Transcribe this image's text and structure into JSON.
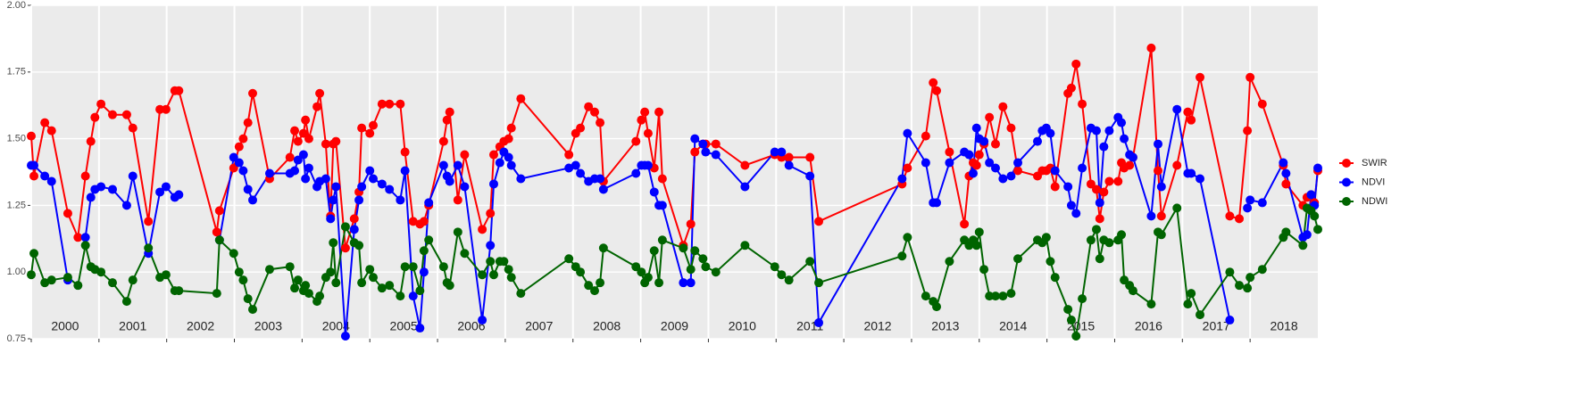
{
  "chart_data": {
    "type": "line",
    "legend": "right",
    "grid": true,
    "xlim": [
      2000,
      2019
    ],
    "xticks": [
      2000,
      2001,
      2002,
      2003,
      2004,
      2005,
      2006,
      2007,
      2008,
      2009,
      2010,
      2011,
      2012,
      2013,
      2014,
      2015,
      2016,
      2017,
      2018
    ],
    "ylim": [
      0.75,
      2
    ],
    "yticks": [
      0.75,
      {
        "value": 1,
        "label": "1.00"
      },
      1.25,
      {
        "value": 1.5,
        "label": "1.50"
      },
      1.75,
      {
        "value": 2,
        "label": "2.00"
      }
    ],
    "x": [
      2000.0,
      2000.04,
      2000.2,
      2000.3,
      2000.54,
      2000.69,
      2000.8,
      2000.88,
      2000.94,
      2001.03,
      2001.2,
      2001.41,
      2001.5,
      2001.73,
      2001.9,
      2001.99,
      2002.12,
      2002.18,
      2002.74,
      2002.78,
      2002.99,
      2003.07,
      2003.13,
      2003.2,
      2003.27,
      2003.52,
      2003.82,
      2003.89,
      2003.94,
      2004.02,
      2004.05,
      2004.1,
      2004.22,
      2004.26,
      2004.35,
      2004.42,
      2004.46,
      2004.5,
      2004.64,
      2004.77,
      2004.84,
      2004.88,
      2005.0,
      2005.05,
      2005.18,
      2005.29,
      2005.45,
      2005.52,
      2005.64,
      2005.74,
      2005.8,
      2005.87,
      2006.09,
      2006.14,
      2006.18,
      2006.3,
      2006.4,
      2006.66,
      2006.78,
      2006.83,
      2006.92,
      2006.98,
      2007.05,
      2007.09,
      2007.23,
      2007.94,
      2008.04,
      2008.11,
      2008.23,
      2008.32,
      2008.4,
      2008.45,
      2008.93,
      2009.01,
      2009.06,
      2009.11,
      2009.2,
      2009.27,
      2009.32,
      2009.63,
      2009.74,
      2009.8,
      2009.92,
      2009.96,
      2010.11,
      2010.54,
      2010.98,
      2011.08,
      2011.19,
      2011.5,
      2011.63,
      2012.86,
      2012.94,
      2013.21,
      2013.32,
      2013.37,
      2013.56,
      2013.78,
      2013.85,
      2013.91,
      2013.96,
      2014.0,
      2014.07,
      2014.15,
      2014.24,
      2014.35,
      2014.47,
      2014.57,
      2014.86,
      2014.93,
      2014.99,
      2015.05,
      2015.12,
      2015.31,
      2015.36,
      2015.43,
      2015.52,
      2015.65,
      2015.73,
      2015.78,
      2015.84,
      2015.92,
      2016.05,
      2016.1,
      2016.14,
      2016.22,
      2016.27,
      2016.54,
      2016.64,
      2016.69,
      2016.92,
      2017.08,
      2017.13,
      2017.26,
      2017.7,
      2017.84,
      2017.96,
      2018.0,
      2018.18,
      2018.49,
      2018.53,
      2018.78,
      2018.84,
      2018.9,
      2018.95,
      2019.0
    ],
    "series": [
      {
        "name": "SWIR",
        "color": "#ff0000",
        "values": [
          1.51,
          1.36,
          1.56,
          1.53,
          1.22,
          1.13,
          1.36,
          1.49,
          1.58,
          1.63,
          1.59,
          1.59,
          1.54,
          1.19,
          1.61,
          1.61,
          1.68,
          1.68,
          1.15,
          1.23,
          1.39,
          1.47,
          1.5,
          1.56,
          1.67,
          1.35,
          1.43,
          1.53,
          1.49,
          1.52,
          1.57,
          1.5,
          1.62,
          1.67,
          1.48,
          1.21,
          1.48,
          1.49,
          1.09,
          1.2,
          1.3,
          1.54,
          1.52,
          1.55,
          1.63,
          1.63,
          1.63,
          1.45,
          1.19,
          1.18,
          1.19,
          1.25,
          1.49,
          1.57,
          1.6,
          1.27,
          1.44,
          1.16,
          1.22,
          1.44,
          1.47,
          1.49,
          1.5,
          1.54,
          1.65,
          1.44,
          1.52,
          1.54,
          1.62,
          1.6,
          1.56,
          1.34,
          1.49,
          1.57,
          1.6,
          1.52,
          1.39,
          1.6,
          1.35,
          1.1,
          1.18,
          1.45,
          1.48,
          1.48,
          1.48,
          1.4,
          1.44,
          1.43,
          1.43,
          1.43,
          1.19,
          1.33,
          1.39,
          1.51,
          1.71,
          1.68,
          1.45,
          1.18,
          1.36,
          1.41,
          1.4,
          1.44,
          1.48,
          1.58,
          1.48,
          1.62,
          1.54,
          1.38,
          1.36,
          1.38,
          1.38,
          1.39,
          1.32,
          1.67,
          1.69,
          1.78,
          1.63,
          1.33,
          1.31,
          1.2,
          1.3,
          1.34,
          1.34,
          1.41,
          1.39,
          1.4,
          1.43,
          1.84,
          1.38,
          1.21,
          1.4,
          1.6,
          1.57,
          1.73,
          1.21,
          1.2,
          1.53,
          1.73,
          1.63,
          1.4,
          1.33,
          1.25,
          1.28,
          1.29,
          1.26,
          1.38
        ]
      },
      {
        "name": "NDVI",
        "color": "#0000ff",
        "values": [
          1.4,
          1.4,
          1.36,
          1.34,
          0.97,
          null,
          1.13,
          1.28,
          1.31,
          1.32,
          1.31,
          1.25,
          1.36,
          1.07,
          1.3,
          1.32,
          1.28,
          1.29,
          null,
          1.12,
          1.43,
          1.41,
          1.38,
          1.31,
          1.27,
          1.37,
          1.37,
          1.38,
          1.42,
          1.44,
          1.35,
          1.39,
          1.32,
          1.34,
          1.35,
          1.2,
          1.27,
          1.32,
          0.76,
          1.16,
          1.27,
          1.32,
          1.38,
          1.35,
          1.33,
          1.31,
          1.27,
          1.38,
          0.91,
          0.79,
          1.0,
          1.26,
          1.4,
          1.36,
          1.34,
          1.4,
          1.32,
          0.82,
          1.1,
          1.33,
          1.41,
          1.45,
          1.43,
          1.4,
          1.35,
          1.39,
          1.4,
          1.37,
          1.34,
          1.35,
          1.35,
          1.31,
          1.37,
          1.4,
          1.4,
          1.4,
          1.3,
          1.25,
          1.25,
          0.96,
          0.96,
          1.5,
          1.48,
          1.45,
          1.44,
          1.32,
          1.45,
          1.45,
          1.4,
          1.36,
          0.81,
          1.35,
          1.52,
          1.41,
          1.26,
          1.26,
          1.41,
          1.45,
          1.44,
          1.37,
          1.54,
          1.5,
          1.49,
          1.41,
          1.39,
          1.35,
          1.36,
          1.41,
          1.49,
          1.53,
          1.54,
          1.52,
          1.38,
          1.32,
          1.25,
          1.22,
          1.39,
          1.54,
          1.53,
          1.26,
          1.47,
          1.53,
          1.58,
          1.56,
          1.5,
          1.44,
          1.43,
          1.21,
          1.48,
          1.32,
          1.61,
          1.37,
          1.37,
          1.35,
          0.82,
          null,
          1.24,
          1.27,
          1.26,
          1.41,
          1.37,
          1.13,
          1.14,
          1.29,
          1.25,
          1.39
        ]
      },
      {
        "name": "NDWI",
        "color": "#006400",
        "values": [
          0.99,
          1.07,
          0.96,
          0.97,
          0.98,
          0.95,
          1.1,
          1.02,
          1.01,
          1.0,
          0.96,
          0.89,
          0.97,
          1.09,
          0.98,
          0.99,
          0.93,
          0.93,
          0.92,
          1.12,
          1.07,
          1.0,
          0.97,
          0.9,
          0.86,
          1.01,
          1.02,
          0.94,
          0.97,
          0.93,
          0.95,
          0.92,
          0.89,
          0.91,
          0.98,
          1.0,
          1.11,
          0.96,
          1.17,
          1.11,
          1.1,
          0.96,
          1.01,
          0.98,
          0.94,
          0.95,
          0.91,
          1.02,
          1.02,
          0.93,
          1.08,
          1.12,
          1.02,
          0.96,
          0.95,
          1.15,
          1.07,
          0.99,
          1.04,
          0.99,
          1.04,
          1.04,
          1.01,
          0.98,
          0.92,
          1.05,
          1.02,
          1.0,
          0.95,
          0.93,
          0.96,
          1.09,
          1.02,
          1.0,
          0.96,
          0.98,
          1.08,
          0.96,
          1.12,
          1.09,
          1.01,
          1.08,
          1.05,
          1.02,
          1.0,
          1.1,
          1.02,
          0.99,
          0.97,
          1.04,
          0.96,
          1.06,
          1.13,
          0.91,
          0.89,
          0.87,
          1.04,
          1.12,
          1.1,
          1.12,
          1.1,
          1.15,
          1.01,
          0.91,
          0.91,
          0.91,
          0.92,
          1.05,
          1.12,
          1.11,
          1.13,
          1.04,
          0.98,
          0.86,
          0.82,
          0.76,
          0.9,
          1.12,
          1.16,
          1.05,
          1.12,
          1.11,
          1.12,
          1.14,
          0.97,
          0.95,
          0.93,
          0.88,
          1.15,
          1.14,
          1.24,
          0.88,
          0.92,
          0.84,
          1.0,
          0.95,
          0.94,
          0.98,
          1.01,
          1.13,
          1.15,
          1.1,
          1.24,
          1.23,
          1.21,
          1.16
        ]
      }
    ]
  }
}
